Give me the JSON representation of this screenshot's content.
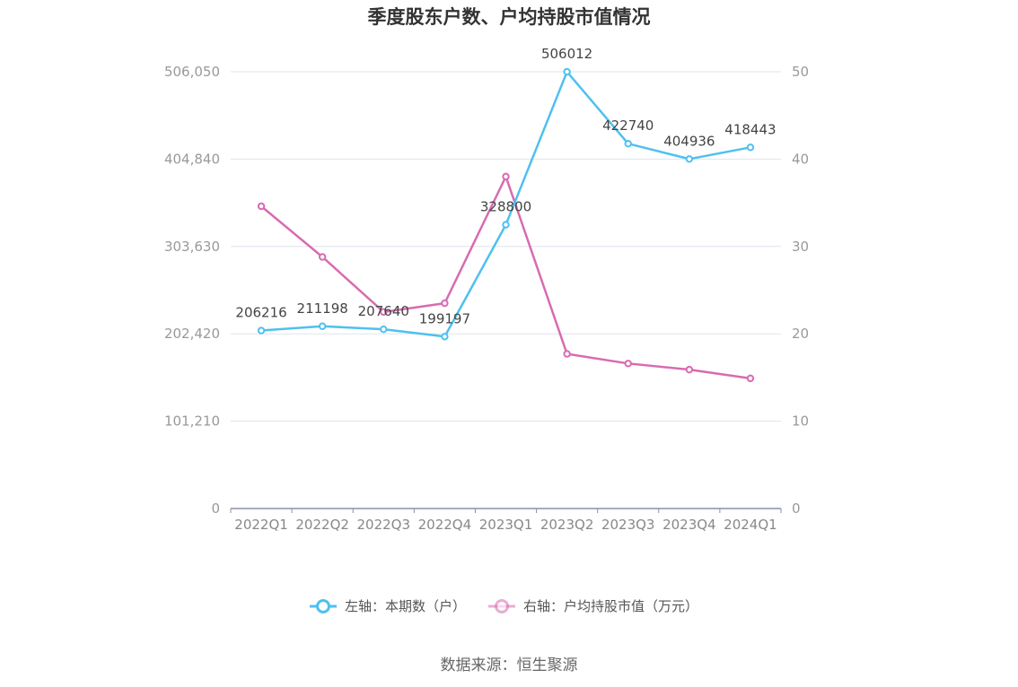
{
  "chart_data": {
    "type": "line",
    "title": "季度股东户数、户均持股市值情况",
    "categories": [
      "2022Q1",
      "2022Q2",
      "2022Q3",
      "2022Q4",
      "2023Q1",
      "2023Q2",
      "2023Q3",
      "2023Q4",
      "2024Q1"
    ],
    "left_axis": {
      "ticks": [
        "0",
        "101,210",
        "202,420",
        "303,630",
        "404,840",
        "506,050"
      ],
      "ylim": [
        0,
        506050
      ]
    },
    "right_axis": {
      "ticks": [
        "0",
        "10",
        "20",
        "30",
        "40",
        "50"
      ],
      "ylim": [
        0,
        50
      ]
    },
    "series": [
      {
        "name": "左轴：本期数（户）",
        "axis": "left",
        "color": "#4fc0f0",
        "values": [
          206216,
          211198,
          207640,
          199197,
          328800,
          506012,
          422740,
          404936,
          418443
        ],
        "labels": [
          "206216",
          "211198",
          "207640",
          "199197",
          "328800",
          "506012",
          "422740",
          "404936",
          "418443"
        ]
      },
      {
        "name": "右轴：户均持股市值（万元）",
        "axis": "right",
        "color": "#d86bb0",
        "values": [
          34.6,
          28.8,
          22.5,
          23.5,
          38.0,
          17.7,
          16.6,
          15.9,
          14.9
        ]
      }
    ],
    "grid": true,
    "legend_position": "bottom-center",
    "source": "数据来源：恒生聚源"
  }
}
